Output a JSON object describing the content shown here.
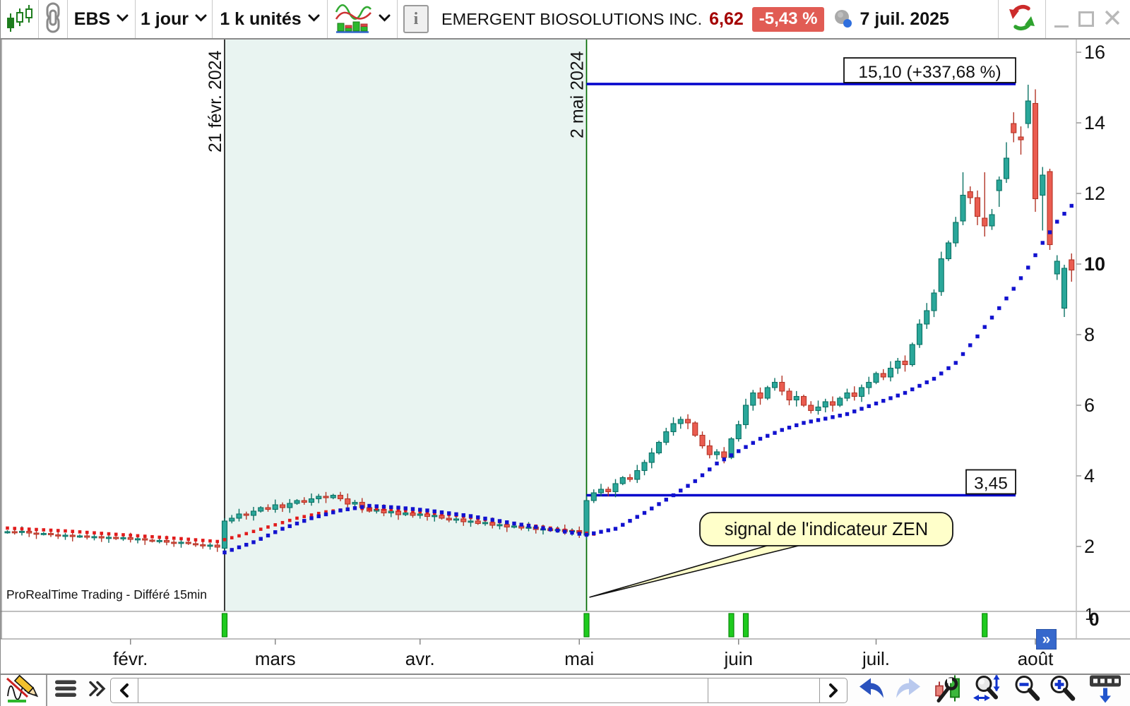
{
  "toolbar_top": {
    "symbol": "EBS",
    "timeframe": "1 jour",
    "units": "1 k unités",
    "instrument_name": "EMERGENT BIOSOLUTIONS INC.",
    "last_price": "6,62",
    "change_percent": "-5,43 %",
    "date": "7 juil. 2025",
    "colors": {
      "price_text": "#a40000",
      "badge_bg": "#e15c54",
      "badge_text": "#ffffff"
    },
    "icons": [
      "candlestick-style-icon",
      "link-icon",
      "chevron-down-icon",
      "chart-type-icon",
      "info-icon",
      "delayed-clock-icon",
      "refresh-icon",
      "minimize-icon",
      "maximize-icon",
      "close-icon"
    ]
  },
  "chart_data": {
    "type": "candlestick",
    "title": "EMERGENT BIOSOLUTIONS INC.",
    "timeframe": "1 jour",
    "ylim": [
      0,
      16.4
    ],
    "y_ticks": [
      2,
      4,
      6,
      8,
      10,
      12,
      14,
      16
    ],
    "bold_y_tick": 10,
    "sub_pane_scale": [
      "1",
      "0"
    ],
    "grid": false,
    "watermark": "ProRealTime Trading - Différé 15min",
    "months": [
      {
        "label": "févr.",
        "bar": 17
      },
      {
        "label": "mars",
        "bar": 37
      },
      {
        "label": "avr.",
        "bar": 57
      },
      {
        "label": "mai",
        "bar": 79
      },
      {
        "label": "juin",
        "bar": 101
      },
      {
        "label": "juil.",
        "bar": 120
      },
      {
        "label": "août",
        "bar": 142
      }
    ],
    "closes": [
      2.42,
      2.4,
      2.43,
      2.38,
      2.35,
      2.37,
      2.33,
      2.3,
      2.32,
      2.28,
      2.3,
      2.26,
      2.28,
      2.24,
      2.26,
      2.22,
      2.25,
      2.2,
      2.22,
      2.18,
      2.15,
      2.17,
      2.12,
      2.1,
      2.12,
      2.08,
      2.05,
      2.02,
      2.04,
      1.98,
      2.72,
      2.8,
      2.92,
      2.88,
      3.0,
      3.1,
      3.05,
      3.18,
      3.1,
      3.22,
      3.3,
      3.25,
      3.35,
      3.42,
      3.38,
      3.45,
      3.35,
      3.2,
      3.25,
      3.1,
      3.0,
      3.05,
      2.95,
      3.0,
      2.9,
      2.95,
      2.88,
      2.92,
      2.85,
      2.88,
      2.8,
      2.75,
      2.78,
      2.7,
      2.72,
      2.65,
      2.68,
      2.6,
      2.62,
      2.55,
      2.58,
      2.52,
      2.55,
      2.48,
      2.5,
      2.45,
      2.48,
      2.42,
      2.45,
      2.38,
      3.3,
      3.52,
      3.62,
      3.55,
      3.78,
      3.95,
      3.9,
      4.15,
      4.38,
      4.65,
      4.95,
      5.25,
      5.48,
      5.6,
      5.5,
      5.15,
      4.85,
      4.6,
      4.68,
      4.52,
      5.05,
      5.45,
      6.0,
      6.35,
      6.2,
      6.5,
      6.65,
      6.4,
      6.15,
      6.25,
      6.0,
      5.85,
      5.95,
      6.1,
      6.0,
      6.2,
      6.35,
      6.25,
      6.5,
      6.65,
      6.9,
      6.8,
      7.05,
      7.25,
      7.15,
      7.72,
      8.3,
      8.68,
      9.18,
      10.15,
      10.6,
      11.18,
      11.95,
      11.88,
      11.35,
      11.08,
      11.4,
      12.38,
      13.0,
      13.72,
      13.52,
      14.62,
      11.85,
      12.52,
      10.55,
      10.08,
      9.88,
      9.83
    ],
    "ohlc_overrides": {
      "30": [
        1.95,
        2.8,
        1.83,
        2.72
      ],
      "80": [
        2.32,
        3.42,
        2.2,
        3.3
      ],
      "129": [
        9.22,
        10.35,
        9.1,
        10.15
      ],
      "132": [
        11.22,
        12.6,
        11.1,
        11.95
      ],
      "133": [
        12.05,
        12.2,
        11.7,
        11.88
      ],
      "135": [
        11.3,
        12.6,
        10.78,
        11.08
      ],
      "137": [
        12.08,
        12.48,
        11.62,
        12.38
      ],
      "138": [
        12.42,
        13.45,
        12.3,
        13.0
      ],
      "139": [
        13.98,
        14.3,
        13.45,
        13.72
      ],
      "140": [
        13.6,
        13.9,
        13.1,
        13.52
      ],
      "141": [
        13.98,
        15.08,
        13.85,
        14.62
      ],
      "142": [
        14.55,
        14.95,
        11.48,
        11.85
      ],
      "143": [
        11.95,
        12.75,
        10.95,
        12.52
      ],
      "144": [
        12.62,
        12.7,
        10.4,
        10.55
      ],
      "145": [
        9.72,
        10.25,
        9.55,
        10.08
      ],
      "146": [
        8.75,
        9.98,
        8.5,
        9.88
      ],
      "147": [
        10.12,
        10.3,
        9.5,
        9.83
      ]
    },
    "ma_blue_dotted": [
      [
        30,
        1.83
      ],
      [
        34,
        2.12
      ],
      [
        38,
        2.5
      ],
      [
        42,
        2.8
      ],
      [
        46,
        3.02
      ],
      [
        50,
        3.15
      ],
      [
        54,
        3.1
      ],
      [
        58,
        3.02
      ],
      [
        64,
        2.86
      ],
      [
        70,
        2.65
      ],
      [
        76,
        2.45
      ],
      [
        80,
        2.33
      ],
      [
        84,
        2.5
      ],
      [
        88,
        2.95
      ],
      [
        92,
        3.45
      ],
      [
        95,
        3.85
      ],
      [
        98,
        4.35
      ],
      [
        101,
        4.7
      ],
      [
        104,
        5.05
      ],
      [
        107,
        5.3
      ],
      [
        110,
        5.5
      ],
      [
        113,
        5.62
      ],
      [
        116,
        5.75
      ],
      [
        120,
        6.05
      ],
      [
        124,
        6.35
      ],
      [
        128,
        6.75
      ],
      [
        131,
        7.2
      ],
      [
        134,
        7.95
      ],
      [
        137,
        8.75
      ],
      [
        139,
        9.3
      ],
      [
        141,
        9.9
      ],
      [
        143,
        10.6
      ],
      [
        145,
        11.2
      ],
      [
        147,
        11.65
      ]
    ],
    "ma_red_dotted": [
      [
        0,
        2.52
      ],
      [
        8,
        2.44
      ],
      [
        16,
        2.33
      ],
      [
        24,
        2.22
      ],
      [
        29,
        2.14
      ],
      [
        32,
        2.3
      ],
      [
        36,
        2.55
      ],
      [
        40,
        2.8
      ],
      [
        44,
        2.98
      ],
      [
        48,
        3.08
      ],
      [
        52,
        3.06
      ],
      [
        56,
        3.0
      ],
      [
        62,
        2.88
      ],
      [
        68,
        2.7
      ],
      [
        74,
        2.55
      ],
      [
        79,
        2.4
      ],
      [
        81,
        2.35
      ]
    ],
    "ma_red_range": [
      0,
      81
    ],
    "signal_bars": [
      30,
      80,
      100,
      102,
      135
    ],
    "vlines": [
      {
        "bar": 30,
        "label": "21 févr. 2024",
        "color": "#1a1a1a"
      },
      {
        "bar": 80,
        "label": "2 mai 2024",
        "color": "#006b00"
      }
    ],
    "shaded_region": {
      "from_bar": 30,
      "to_bar": 80,
      "color": "#e9f4f1"
    },
    "hlines": [
      {
        "price": 15.1,
        "label": "15,10 (+337,68 %)",
        "color": "#0202cc"
      },
      {
        "price": 3.45,
        "label": "3,45",
        "color": "#0202cc"
      }
    ],
    "callout": {
      "text": "signal de l'indicateur ZEN",
      "fill": "#ffffca",
      "points_to": "2 mai 2024"
    },
    "colors": {
      "up_fill": "#2aa79a",
      "up_stroke": "#0c7265",
      "down_fill": "#ea5c50",
      "down_stroke": "#b33527",
      "ma_blue": "#1212cf",
      "ma_red": "#e11b1b",
      "signal_fill": "#1ecb1e",
      "signal_stroke": "#0a8a0a",
      "level_line": "#0202cc",
      "axis_text": "#111111"
    }
  },
  "toolbar_bottom": {
    "scroll_left": "‹",
    "scroll_right": "›",
    "expand_range_button": "»",
    "icons": [
      "draw-tool-icon",
      "menu-icon",
      "chevrons-right-icon",
      "undo-icon",
      "redo-icon",
      "chart-settings-icon",
      "zoom-adjust-icon",
      "zoom-out-icon",
      "zoom-in-icon",
      "keyboard-icon"
    ]
  }
}
